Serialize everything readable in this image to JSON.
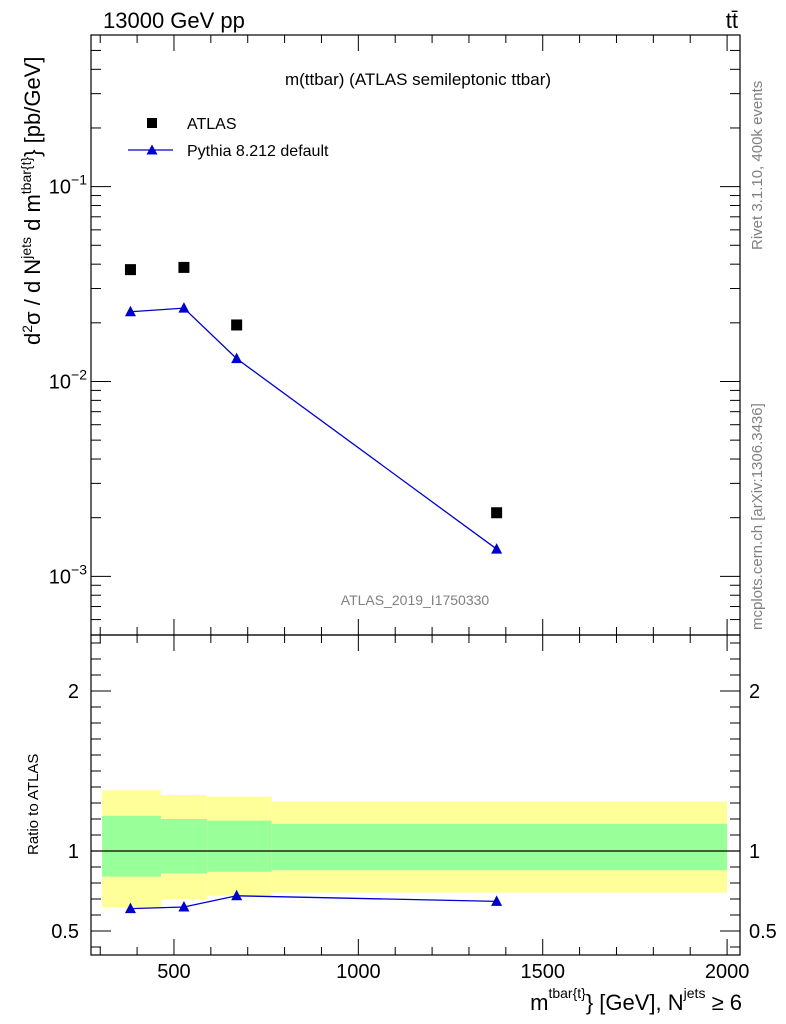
{
  "header": {
    "energy_label": "13000 GeV pp",
    "process_label": "tt̄"
  },
  "side_labels": {
    "rivet": "Rivet 3.1.10,  400k events",
    "source": "mcplots.cern.ch [arXiv:1306.3436]"
  },
  "chart_data": [
    {
      "panel": "main",
      "type": "scatter",
      "title": "m(ttbar) (ATLAS semileptonic ttbar)",
      "watermark": "ATLAS_2019_I1750330",
      "xlabel": "m^{tbar{t}} [GeV], N^{jets} ≥ 6",
      "ylabel": "d²σ / d N^{jets} d m^{tbar{t}} [pb/GeV]",
      "ylabel_parts": {
        "d2": "d",
        "sup2": "2",
        "sigma": "σ / d N",
        "jets": "jets",
        "dm": " d m",
        "tbart": "tbar{t}",
        "unit": "} [pb/GeV]"
      },
      "xlabel_parts": {
        "m": "m",
        "tbart": "tbar{t}",
        "unit": "} [GeV], N",
        "jets": "jets",
        "geq": " ≥ 6"
      },
      "x_scale": "linear",
      "y_scale": "log",
      "xlim": [
        275,
        2035
      ],
      "ylim": [
        0.0005,
        0.6
      ],
      "y_ticks": [
        {
          "value": 0.1,
          "base": "10",
          "exp": "−1"
        },
        {
          "value": 0.01,
          "base": "10",
          "exp": "−2"
        },
        {
          "value": 0.001,
          "base": "10",
          "exp": "−3"
        }
      ],
      "legend": {
        "placement": "top-left",
        "entries": [
          "ATLAS",
          "Pythia 8.212 default"
        ]
      },
      "series": [
        {
          "name": "ATLAS",
          "marker": "square",
          "color": "#000000",
          "x": [
            382,
            527,
            670,
            1375
          ],
          "y": [
            0.0375,
            0.0385,
            0.0195,
            0.00212
          ]
        },
        {
          "name": "Pythia 8.212 default",
          "marker": "triangle",
          "color": "#0000cc",
          "x": [
            382,
            527,
            670,
            1375
          ],
          "y": [
            0.0228,
            0.0238,
            0.0131,
            0.00138
          ]
        }
      ]
    },
    {
      "panel": "ratio",
      "type": "line",
      "ylabel": "Ratio to ATLAS",
      "xlim": [
        275,
        2035
      ],
      "ylim": [
        0.35,
        2.35
      ],
      "x_ticks": [
        500,
        1000,
        1500,
        2000
      ],
      "x_tick_labels": [
        "500",
        "1000",
        "1500",
        "2000"
      ],
      "y_ticks": [
        0.5,
        1,
        2
      ],
      "y_tick_labels": [
        "0.5",
        "1",
        "2"
      ],
      "reference_line": 1,
      "bands": {
        "bins": [
          [
            305,
            465
          ],
          [
            465,
            590
          ],
          [
            590,
            765
          ],
          [
            765,
            2000
          ]
        ],
        "inner_color": "#99ff99",
        "outer_color": "#ffff99",
        "inner": [
          [
            0.84,
            1.22
          ],
          [
            0.86,
            1.2
          ],
          [
            0.87,
            1.19
          ],
          [
            0.88,
            1.17
          ]
        ],
        "outer": [
          [
            0.65,
            1.38
          ],
          [
            0.7,
            1.35
          ],
          [
            0.72,
            1.34
          ],
          [
            0.74,
            1.31
          ]
        ]
      },
      "series": [
        {
          "name": "Pythia 8.212 default",
          "color": "#0000cc",
          "x": [
            382,
            527,
            670,
            1375
          ],
          "y": [
            0.64,
            0.65,
            0.72,
            0.685
          ],
          "yerr": [
            0.005,
            0.005,
            0.015,
            0.02
          ]
        }
      ]
    }
  ]
}
